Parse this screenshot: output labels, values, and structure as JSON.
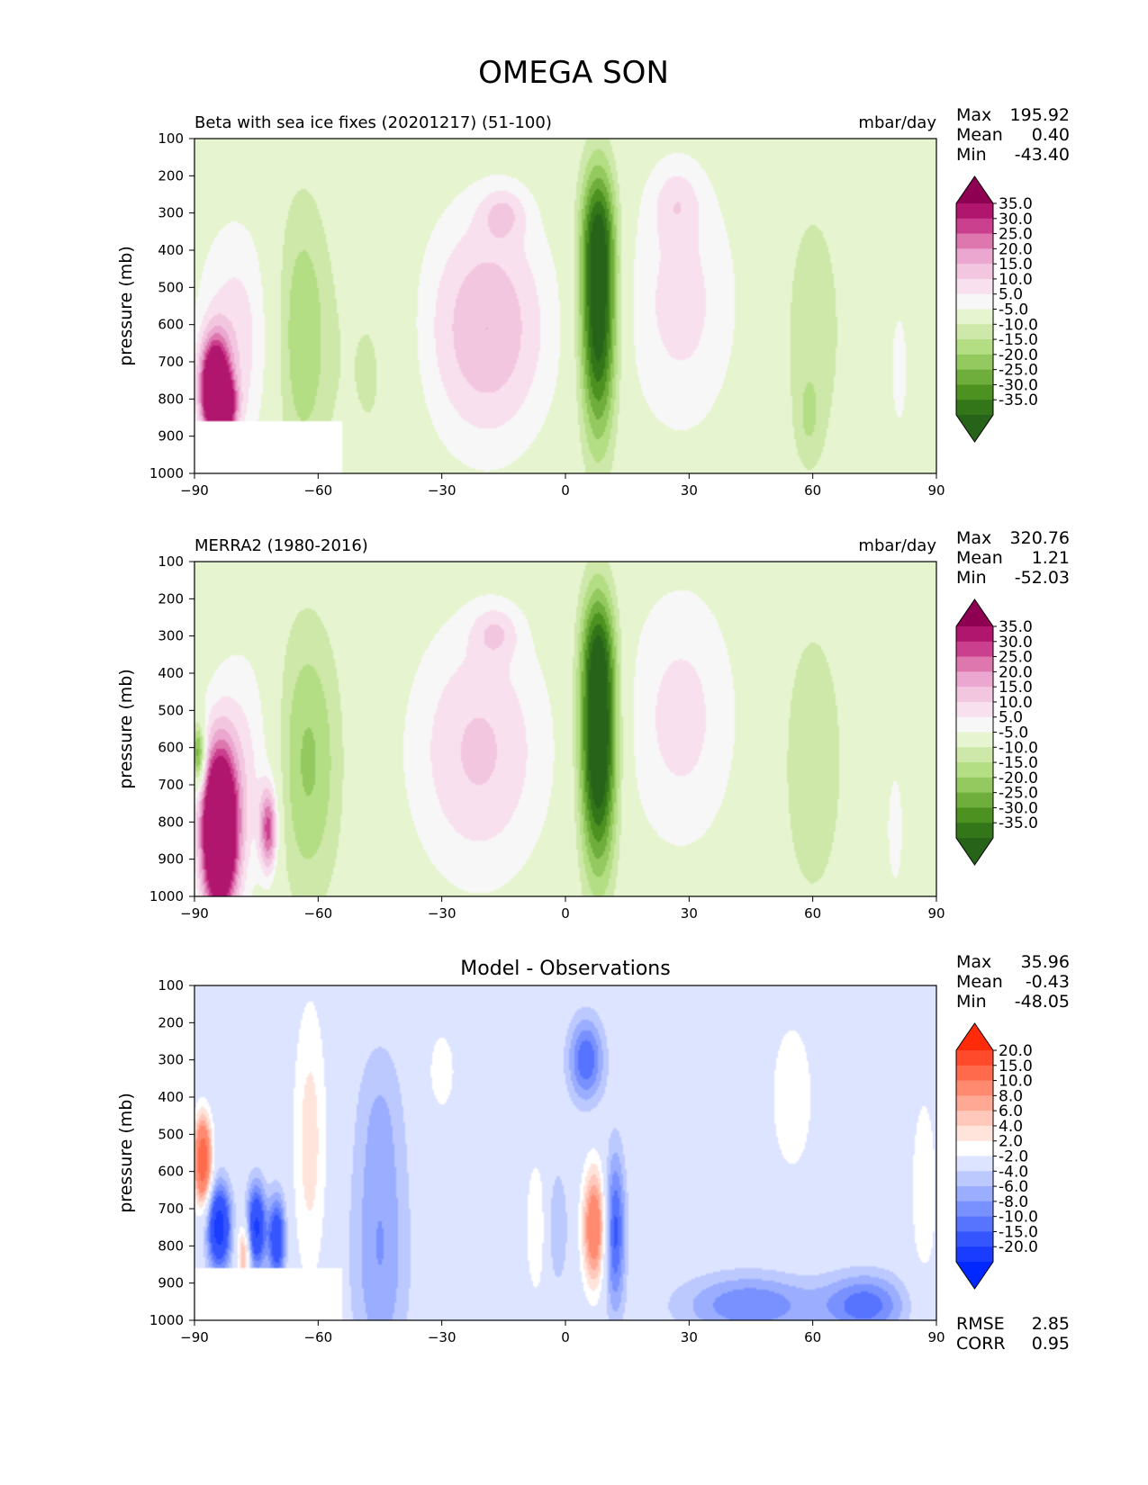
{
  "figure": {
    "title": "OMEGA SON"
  },
  "chart_data": [
    {
      "type": "heatmap",
      "id": "test",
      "title_left": "Beta with sea ice fixes (20201217) (51-100)",
      "title_center": "",
      "units": "mbar/day",
      "ylabel": "pressure (mb)",
      "xlabel": "",
      "x_ticks": [
        "−90",
        "−60",
        "−30",
        "0",
        "30",
        "60",
        "90"
      ],
      "y_ticks": [
        "100",
        "200",
        "300",
        "400",
        "500",
        "600",
        "700",
        "800",
        "900",
        "1000"
      ],
      "xlim": [
        -90,
        90
      ],
      "ylim": [
        1000,
        100
      ],
      "y_scale": "linear",
      "stats": [
        {
          "label": "Max",
          "value": "195.92"
        },
        {
          "label": "Mean",
          "value": "0.40"
        },
        {
          "label": "Min",
          "value": "-43.40"
        }
      ],
      "extra_stats": [],
      "colorbar": {
        "levels": [
          "35.0",
          "30.0",
          "25.0",
          "20.0",
          "15.0",
          "10.0",
          "5.0",
          "-5.0",
          "-10.0",
          "-15.0",
          "-20.0",
          "-25.0",
          "-30.0",
          "-35.0"
        ],
        "colors": [
          "#8e0152",
          "#b0166d",
          "#cb3f8f",
          "#de77ae",
          "#eba7cf",
          "#f3c6e0",
          "#f9e0ee",
          "#f7f7f7",
          "#e6f5d0",
          "#cde8a8",
          "#b3de83",
          "#94c95f",
          "#6fae3c",
          "#4d9221",
          "#33761a",
          "#276419"
        ],
        "extend": "both"
      },
      "missing_regions": [
        {
          "lon_range": [
            -90,
            -54
          ],
          "p_range": [
            862,
            1000
          ]
        }
      ],
      "features": [
        {
          "lon": 8,
          "p": 570,
          "amp": -43,
          "wlon": 3.2,
          "wp": 240
        },
        {
          "lon": 8,
          "p": 330,
          "amp": -14,
          "wlon": 3.0,
          "wp": 110
        },
        {
          "lon": -19,
          "p": 610,
          "amp": 20,
          "wlon": 11,
          "wp": 230
        },
        {
          "lon": -15,
          "p": 300,
          "amp": 10,
          "wlon": 4,
          "wp": 50
        },
        {
          "lon": 28,
          "p": 540,
          "amp": 12,
          "wlon": 10,
          "wp": 260
        },
        {
          "lon": 27,
          "p": 270,
          "amp": 8,
          "wlon": 4,
          "wp": 70
        },
        {
          "lon": -80,
          "p": 640,
          "amp": 13,
          "wlon": 7,
          "wp": 230
        },
        {
          "lon": -85,
          "p": 770,
          "amp": 55,
          "wlon": 2.5,
          "wp": 90
        },
        {
          "lon": -83,
          "p": 820,
          "amp": 35,
          "wlon": 2.2,
          "wp": 50
        },
        {
          "lon": -64,
          "p": 630,
          "amp": -15,
          "wlon": 5,
          "wp": 270
        },
        {
          "lon": -47,
          "p": 720,
          "amp": -6,
          "wlon": 6,
          "wp": 250
        },
        {
          "lon": 60,
          "p": 620,
          "amp": -8,
          "wlon": 6,
          "wp": 300
        },
        {
          "lon": 59,
          "p": 850,
          "amp": -6,
          "wlon": 2,
          "wp": 80
        },
        {
          "lon": 81,
          "p": 720,
          "amp": 7,
          "wlon": 2,
          "wp": 160
        }
      ]
    },
    {
      "type": "heatmap",
      "id": "reference",
      "title_left": "MERRA2 (1980-2016)",
      "title_center": "",
      "units": "mbar/day",
      "ylabel": "pressure (mb)",
      "xlabel": "",
      "x_ticks": [
        "−90",
        "−60",
        "−30",
        "0",
        "30",
        "60",
        "90"
      ],
      "y_ticks": [
        "100",
        "200",
        "300",
        "400",
        "500",
        "600",
        "700",
        "800",
        "900",
        "1000"
      ],
      "xlim": [
        -90,
        90
      ],
      "ylim": [
        1000,
        100
      ],
      "y_scale": "linear",
      "stats": [
        {
          "label": "Max",
          "value": "320.76"
        },
        {
          "label": "Mean",
          "value": "1.21"
        },
        {
          "label": "Min",
          "value": "-52.03"
        }
      ],
      "extra_stats": [],
      "colorbar": {
        "levels": [
          "35.0",
          "30.0",
          "25.0",
          "20.0",
          "15.0",
          "10.0",
          "5.0",
          "-5.0",
          "-10.0",
          "-15.0",
          "-20.0",
          "-25.0",
          "-30.0",
          "-35.0"
        ],
        "colors": [
          "#8e0152",
          "#b0166d",
          "#cb3f8f",
          "#de77ae",
          "#eba7cf",
          "#f3c6e0",
          "#f9e0ee",
          "#f7f7f7",
          "#e6f5d0",
          "#cde8a8",
          "#b3de83",
          "#94c95f",
          "#6fae3c",
          "#4d9221",
          "#33761a",
          "#276419"
        ],
        "extend": "both"
      },
      "missing_regions": [],
      "features": [
        {
          "lon": 8,
          "p": 590,
          "amp": -48,
          "wlon": 3.2,
          "wp": 240
        },
        {
          "lon": 8,
          "p": 330,
          "amp": -14,
          "wlon": 3.0,
          "wp": 110
        },
        {
          "lon": -21,
          "p": 610,
          "amp": 16,
          "wlon": 12,
          "wp": 250
        },
        {
          "lon": -17,
          "p": 290,
          "amp": 10,
          "wlon": 4,
          "wp": 50
        },
        {
          "lon": 28,
          "p": 520,
          "amp": 12,
          "wlon": 10,
          "wp": 260
        },
        {
          "lon": -78,
          "p": 660,
          "amp": 12,
          "wlon": 7,
          "wp": 240
        },
        {
          "lon": -84,
          "p": 830,
          "amp": 70,
          "wlon": 3,
          "wp": 150
        },
        {
          "lon": -72,
          "p": 820,
          "amp": 30,
          "wlon": 1.5,
          "wp": 80
        },
        {
          "lon": -63,
          "p": 640,
          "amp": -17,
          "wlon": 6,
          "wp": 270
        },
        {
          "lon": -89,
          "p": 620,
          "amp": -30,
          "wlon": 1.2,
          "wp": 60
        },
        {
          "lon": 60,
          "p": 640,
          "amp": -9,
          "wlon": 6,
          "wp": 300
        },
        {
          "lon": 80,
          "p": 820,
          "amp": 7,
          "wlon": 2,
          "wp": 160
        }
      ]
    },
    {
      "type": "heatmap",
      "id": "difference",
      "title_left": "",
      "title_center": "Model - Observations",
      "units": "",
      "ylabel": "pressure (mb)",
      "xlabel": "",
      "x_ticks": [
        "−90",
        "−60",
        "−30",
        "0",
        "30",
        "60",
        "90"
      ],
      "y_ticks": [
        "100",
        "200",
        "300",
        "400",
        "500",
        "600",
        "700",
        "800",
        "900",
        "1000"
      ],
      "xlim": [
        -90,
        90
      ],
      "ylim": [
        1000,
        100
      ],
      "y_scale": "linear",
      "stats": [
        {
          "label": "Max",
          "value": "35.96"
        },
        {
          "label": "Mean",
          "value": "-0.43"
        },
        {
          "label": "Min",
          "value": "-48.05"
        }
      ],
      "extra_stats": [
        {
          "label": "RMSE",
          "value": "2.85"
        },
        {
          "label": "CORR",
          "value": "0.95"
        }
      ],
      "colorbar": {
        "levels": [
          "20.0",
          "15.0",
          "10.0",
          "8.0",
          "6.0",
          "4.0",
          "2.0",
          "-2.0",
          "-4.0",
          "-6.0",
          "-8.0",
          "-10.0",
          "-15.0",
          "-20.0"
        ],
        "colors": [
          "#ff2a0a",
          "#ff4a2b",
          "#ff6a4d",
          "#ff8a70",
          "#ffa995",
          "#ffc8ba",
          "#ffe4dc",
          "#ffffff",
          "#dde4ff",
          "#bcc9ff",
          "#9aadff",
          "#7891ff",
          "#5674ff",
          "#3556ff",
          "#1a3cff",
          "#0028ff"
        ],
        "extend": "both"
      },
      "missing_regions": [
        {
          "lon_range": [
            -90,
            -54
          ],
          "p_range": [
            862,
            1000
          ]
        }
      ],
      "features": [
        {
          "lon": 7,
          "p": 750,
          "amp": 14,
          "wlon": 2,
          "wp": 110
        },
        {
          "lon": 12,
          "p": 760,
          "amp": -11,
          "wlon": 1.8,
          "wp": 150
        },
        {
          "lon": 5,
          "p": 300,
          "amp": -10,
          "wlon": 3,
          "wp": 80
        },
        {
          "lon": -2,
          "p": 750,
          "amp": -4,
          "wlon": 2,
          "wp": 120
        },
        {
          "lon": -88,
          "p": 570,
          "amp": 20,
          "wlon": 1.5,
          "wp": 80
        },
        {
          "lon": -84,
          "p": 750,
          "amp": -18,
          "wlon": 2,
          "wp": 80
        },
        {
          "lon": -75,
          "p": 750,
          "amp": -16,
          "wlon": 1.6,
          "wp": 80
        },
        {
          "lon": -70,
          "p": 780,
          "amp": -14,
          "wlon": 1.5,
          "wp": 80
        },
        {
          "lon": -78,
          "p": 820,
          "amp": 9,
          "wlon": 1.2,
          "wp": 60
        },
        {
          "lon": -62,
          "p": 520,
          "amp": 5,
          "wlon": 3,
          "wp": 280
        },
        {
          "lon": -45,
          "p": 820,
          "amp": -6,
          "wlon": 5,
          "wp": 260
        },
        {
          "lon": -30,
          "p": 330,
          "amp": 3,
          "wlon": 3,
          "wp": 100
        },
        {
          "lon": -7,
          "p": 750,
          "amp": 4,
          "wlon": 2,
          "wp": 140
        },
        {
          "lon": 45,
          "p": 960,
          "amp": -8,
          "wlon": 12,
          "wp": 60
        },
        {
          "lon": 73,
          "p": 960,
          "amp": -9,
          "wlon": 7,
          "wp": 60
        },
        {
          "lon": 55,
          "p": 400,
          "amp": 3,
          "wlon": 5,
          "wp": 200
        },
        {
          "lon": 87,
          "p": 650,
          "amp": 3,
          "wlon": 3,
          "wp": 250
        },
        {
          "lon": -45,
          "p": 430,
          "amp": -2.5,
          "wlon": 4,
          "wp": 150
        }
      ]
    }
  ]
}
